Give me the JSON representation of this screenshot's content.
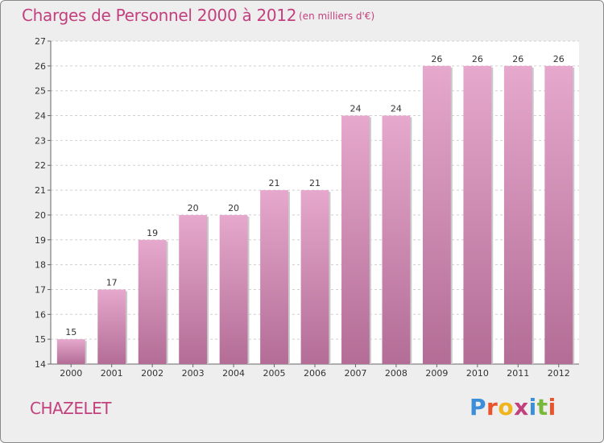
{
  "header": {
    "title": "Charges de Personnel 2000 à 2012",
    "subtitle": "(en milliers d'€)"
  },
  "footer": {
    "commune": "CHAZELET",
    "logo_text": "Proxiti"
  },
  "colors": {
    "accent": "#c3407e",
    "bar_top": "#e6a8cd",
    "bar_bottom": "#b36d96",
    "background": "#eeeeee"
  },
  "chart_data": {
    "type": "bar",
    "title": "Charges de Personnel 2000 à 2012",
    "subtitle": "(en milliers d'€)",
    "categories": [
      "2000",
      "2001",
      "2002",
      "2003",
      "2004",
      "2005",
      "2006",
      "2007",
      "2008",
      "2009",
      "2010",
      "2011",
      "2012"
    ],
    "values": [
      15,
      17,
      19,
      20,
      20,
      21,
      21,
      24,
      24,
      26,
      26,
      26,
      26
    ],
    "data_labels": [
      "15",
      "17",
      "19",
      "20",
      "20",
      "21",
      "21",
      "24",
      "24",
      "26",
      "26",
      "26",
      "26"
    ],
    "ylim": [
      14,
      27
    ],
    "yticks": [
      14,
      15,
      16,
      17,
      18,
      19,
      20,
      21,
      22,
      23,
      24,
      25,
      26,
      27
    ],
    "xlabel": "",
    "ylabel": "",
    "grid": true
  }
}
